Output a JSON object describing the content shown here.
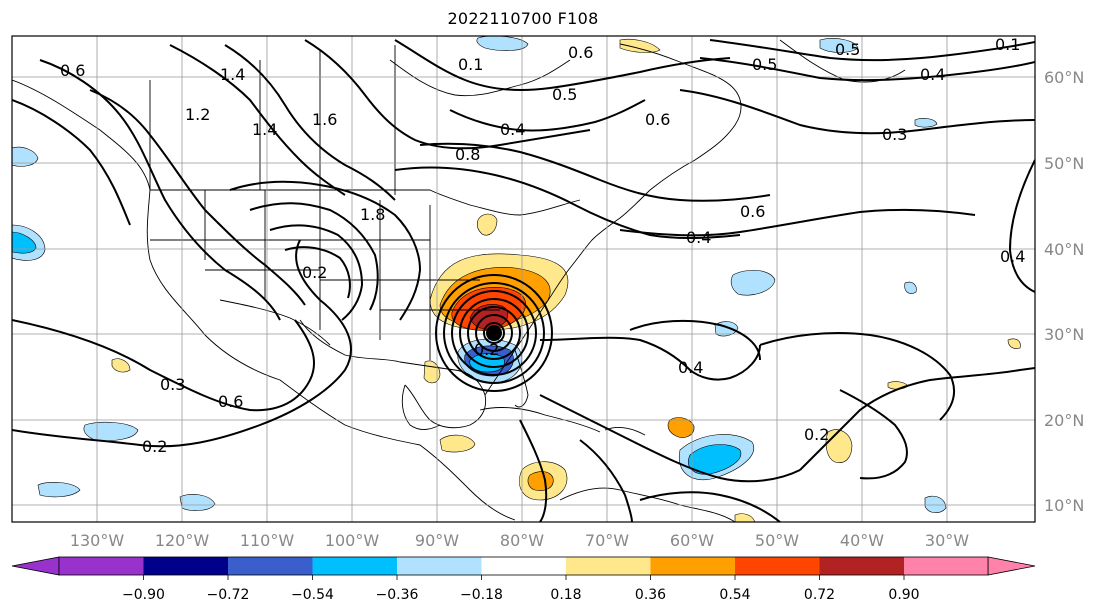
{
  "title": "2022110700 F108",
  "map": {
    "lat_labels": [
      "60°N",
      "50°N",
      "40°N",
      "30°N",
      "20°N",
      "10°N"
    ],
    "lon_labels": [
      "130°W",
      "120°W",
      "110°W",
      "100°W",
      "90°W",
      "80°W",
      "70°W",
      "60°W",
      "50°W",
      "40°W",
      "30°W"
    ],
    "contour_labels": [
      "0.6",
      "1.4",
      "1.2",
      "1.4",
      "1.6",
      "0.1",
      "0.6",
      "0.5",
      "0.5",
      "0.4",
      "0.6",
      "0.4",
      "0.3",
      "0.8",
      "1.8",
      "0.6",
      "0.4",
      "0.2",
      "0.4",
      "0.2",
      "0.3",
      "0.6",
      "0.2",
      "0.4",
      "0.2",
      "0.5",
      "0.1"
    ],
    "land_line_color": "#000000",
    "grid_color": "#999999"
  },
  "colorbar": {
    "ticks": [
      "−0.90",
      "−0.72",
      "−0.54",
      "−0.36",
      "−0.18",
      "0.18",
      "0.36",
      "0.54",
      "0.72",
      "0.90"
    ],
    "colors": [
      "#9932cc",
      "#00008b",
      "#3a5fcd",
      "#00bfff",
      "#b0e2ff",
      "#ffffff",
      "#ffe88c",
      "#ffa000",
      "#ff4500",
      "#b22222",
      "#ff82ab"
    ]
  }
}
